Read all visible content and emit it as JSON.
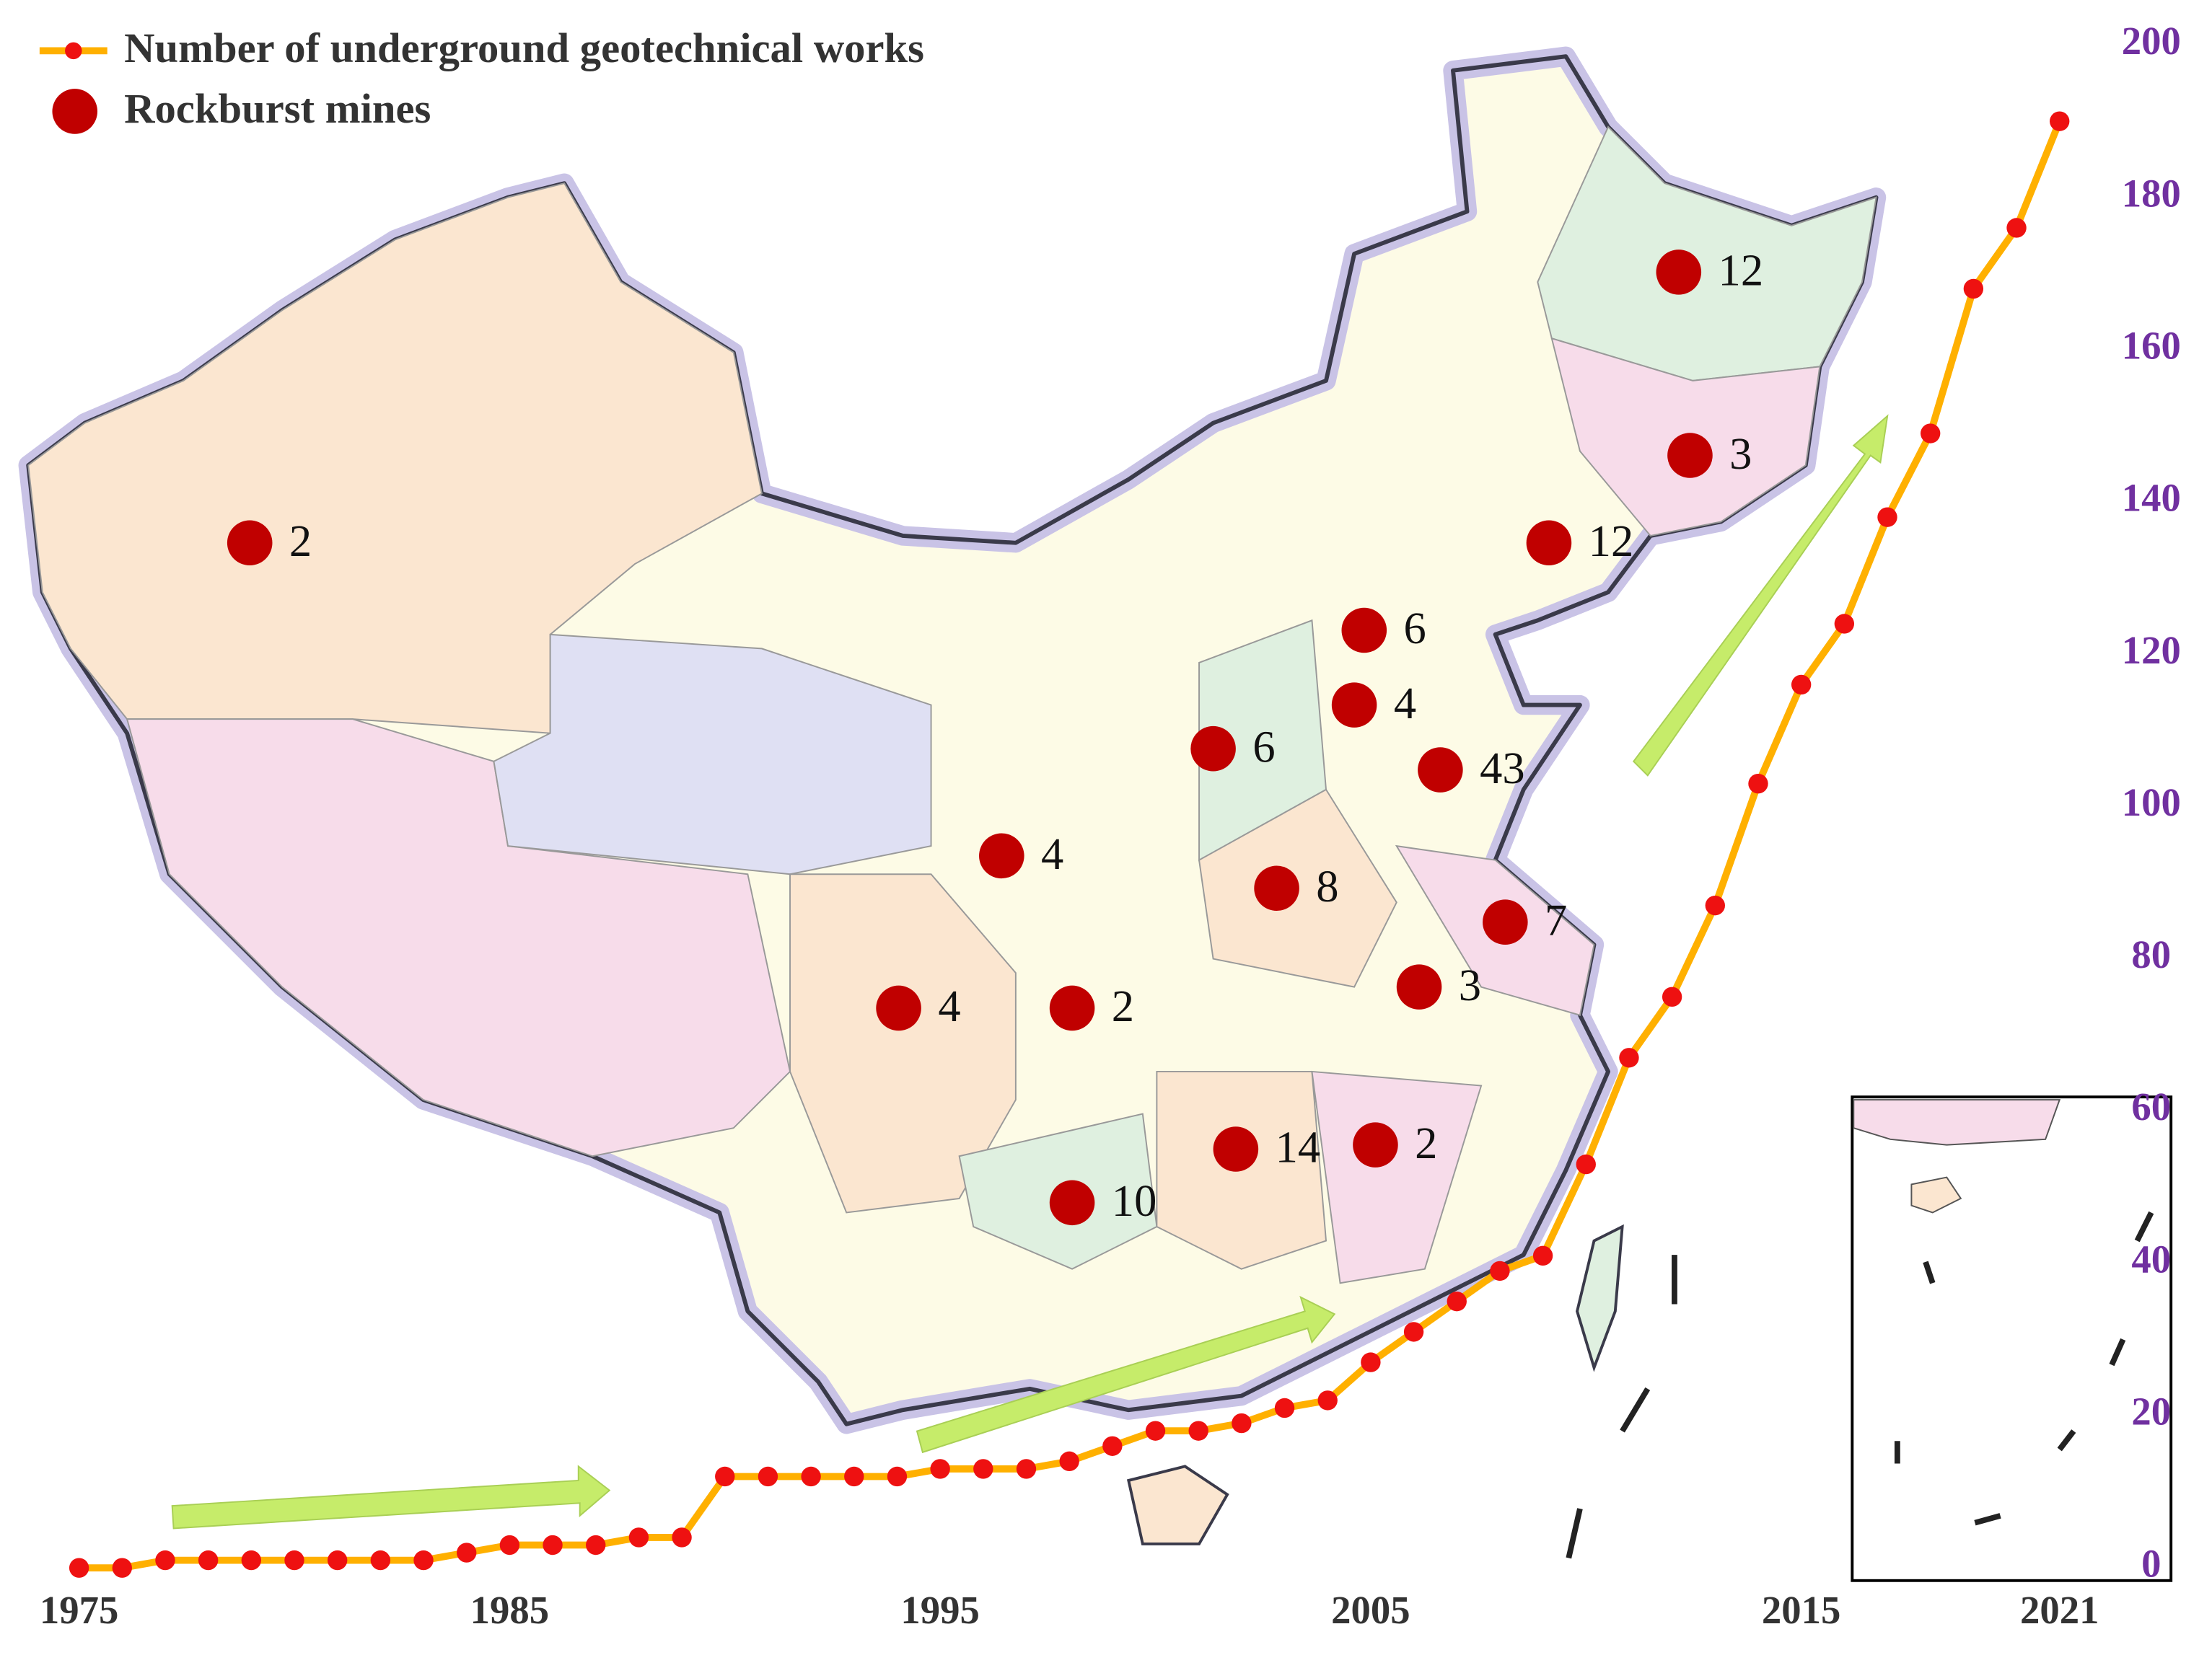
{
  "chart_data": {
    "type": "line",
    "x": [
      1975,
      1976,
      1977,
      1978,
      1979,
      1980,
      1981,
      1982,
      1983,
      1984,
      1985,
      1986,
      1987,
      1988,
      1989,
      1990,
      1991,
      1992,
      1993,
      1994,
      1995,
      1996,
      1997,
      1998,
      1999,
      2000,
      2001,
      2002,
      2003,
      2004,
      2005,
      2006,
      2007,
      2008,
      2009,
      2010,
      2011,
      2012,
      2013,
      2014,
      2015,
      2016,
      2017,
      2018,
      2019,
      2020,
      2021
    ],
    "series": [
      {
        "name": "Number of underground geotechnical works",
        "color": "#ffb000",
        "marker_color": "#ee1111",
        "values": [
          0,
          0,
          1,
          1,
          1,
          1,
          1,
          1,
          1,
          2,
          3,
          3,
          3,
          4,
          4,
          12,
          12,
          12,
          12,
          12,
          13,
          13,
          13,
          14,
          16,
          18,
          18,
          19,
          21,
          22,
          27,
          31,
          35,
          39,
          41,
          53,
          67,
          75,
          87,
          103,
          116,
          124,
          138,
          149,
          168,
          176,
          190
        ]
      }
    ],
    "mines": {
      "name": "Rockburst mines",
      "color": "#c00000",
      "values": [
        12,
        3,
        12,
        6,
        4,
        6,
        43,
        4,
        8,
        7,
        3,
        4,
        2,
        14,
        2,
        10,
        2
      ]
    },
    "xlim": [
      1975,
      2021
    ],
    "xticks": [
      1975,
      1985,
      1995,
      2005,
      2015,
      2021
    ],
    "ylim": [
      0,
      200
    ],
    "yticks": [
      0,
      20,
      40,
      60,
      80,
      100,
      120,
      140,
      160,
      180,
      200
    ],
    "y_axis_side": "right"
  }
}
